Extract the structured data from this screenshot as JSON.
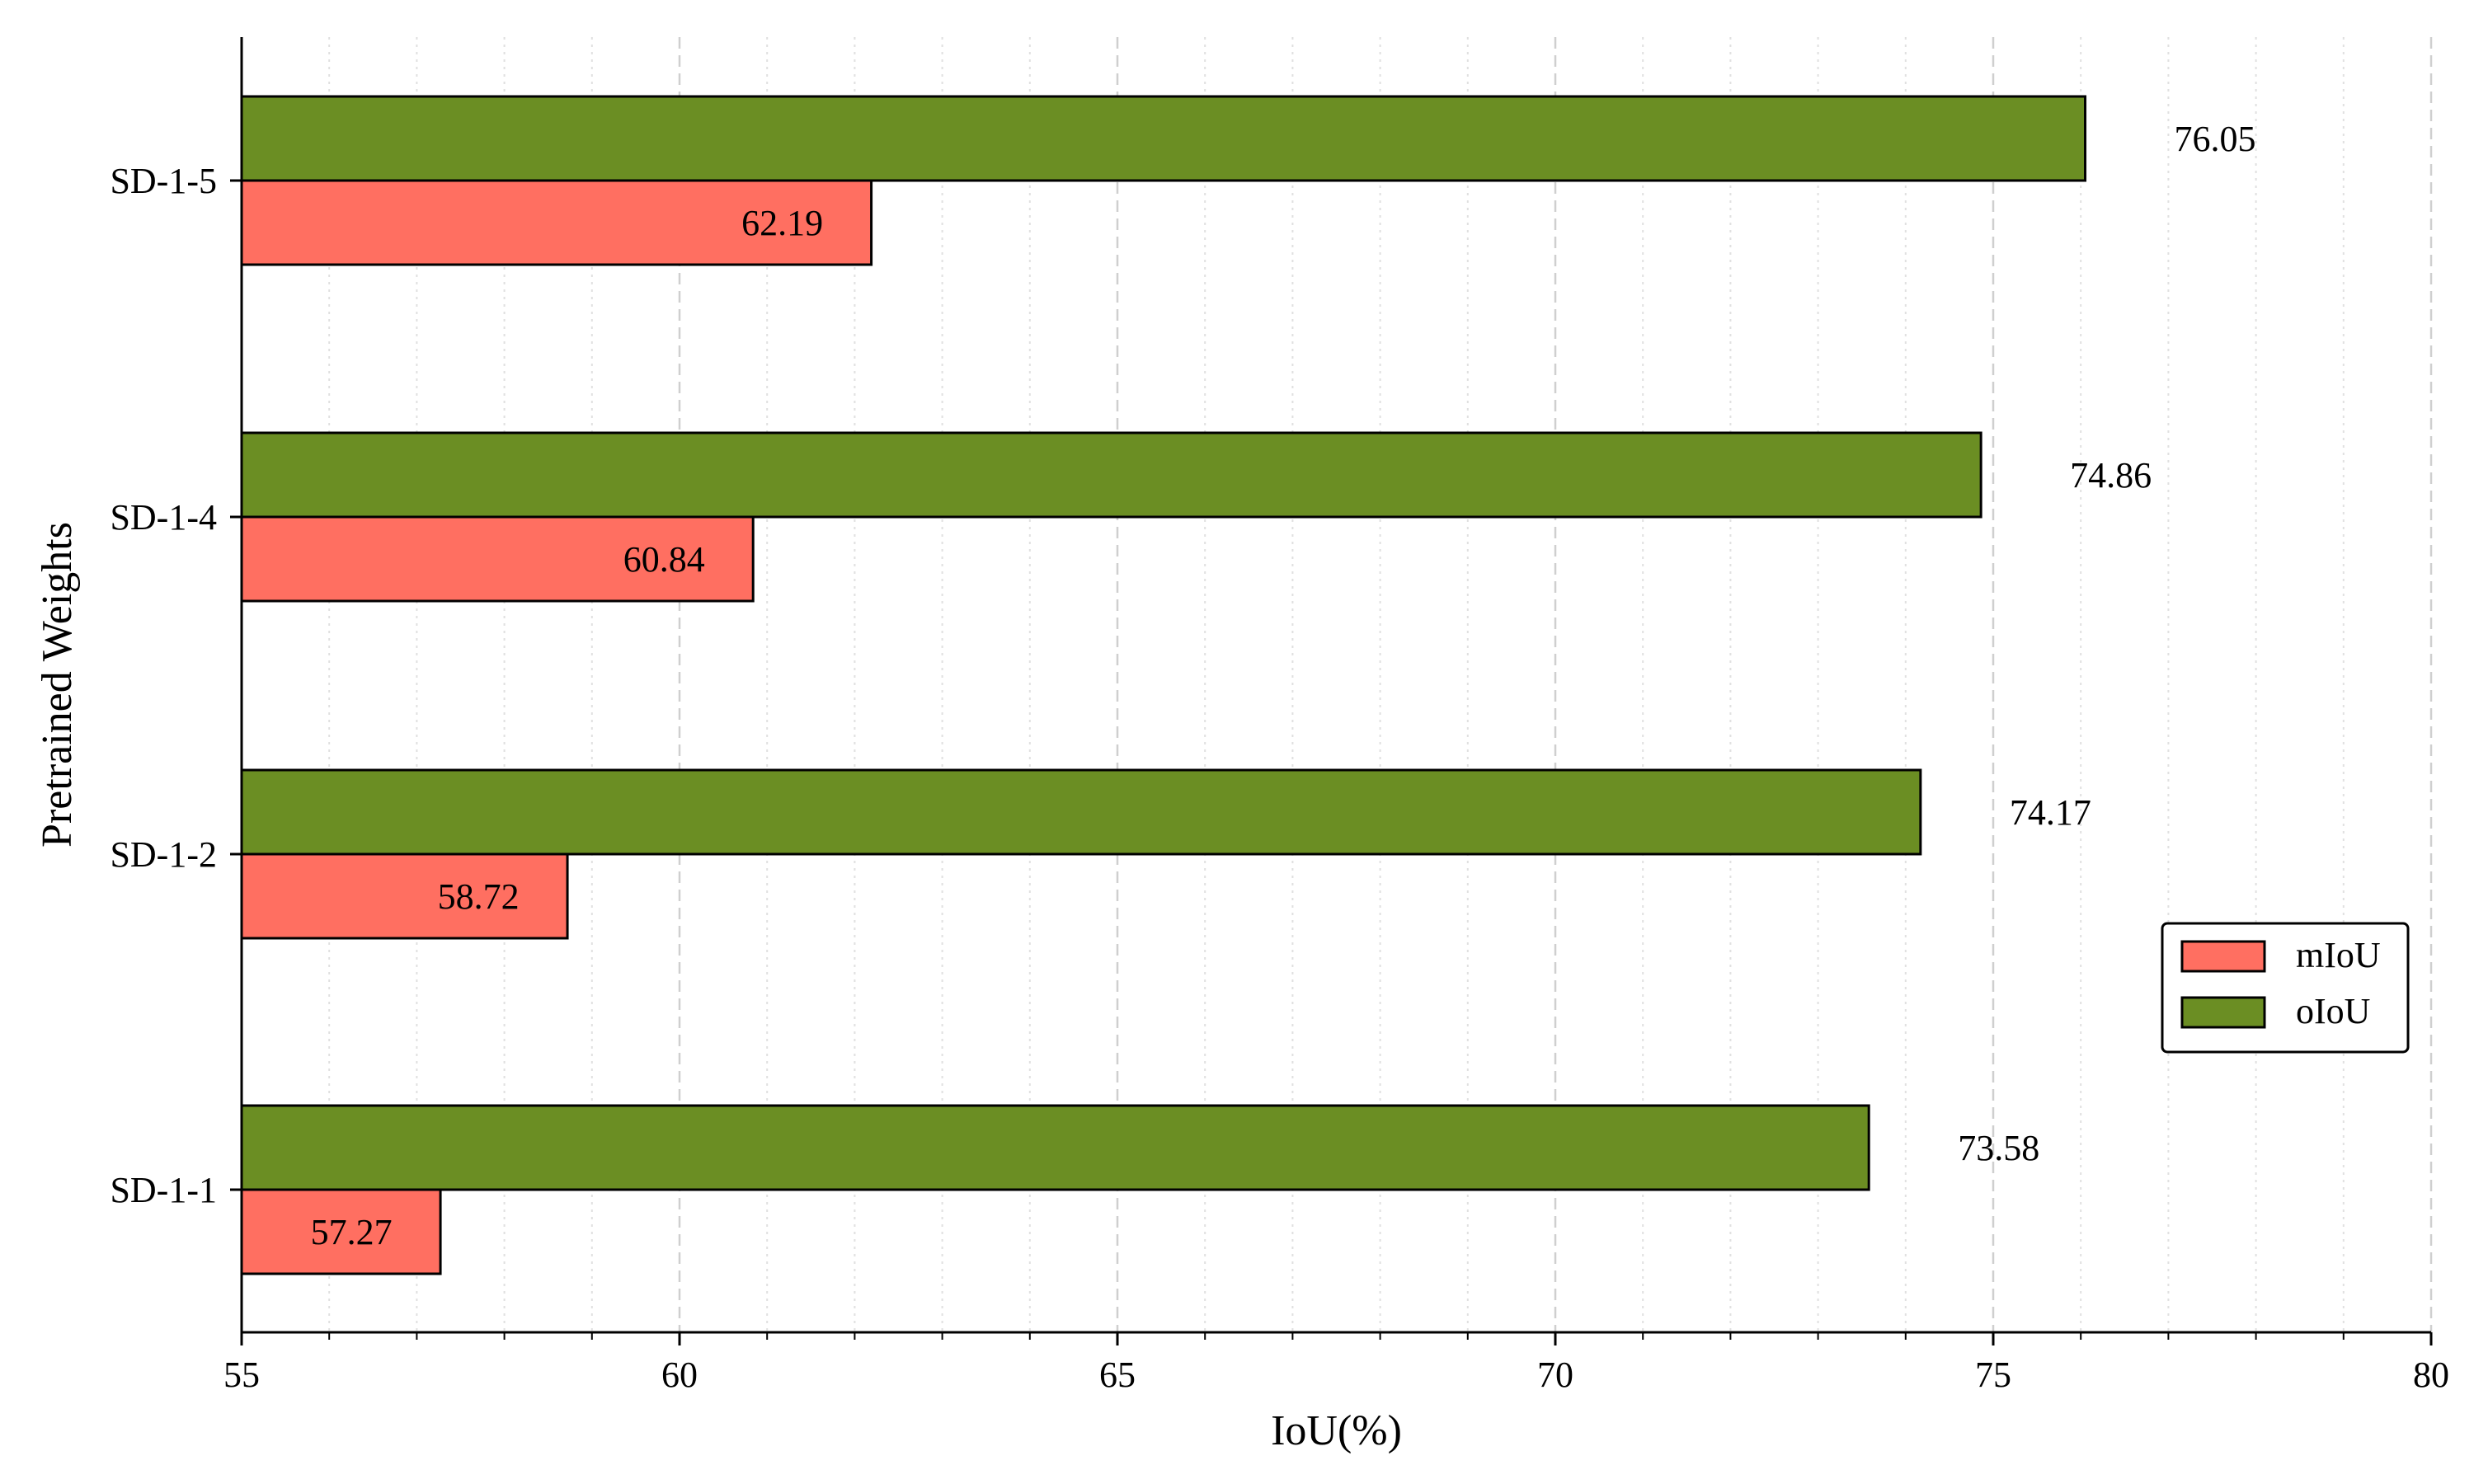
{
  "chart_data": {
    "type": "bar",
    "orientation": "horizontal",
    "categories": [
      "SD-1-1",
      "SD-1-2",
      "SD-1-4",
      "SD-1-5"
    ],
    "series": [
      {
        "name": "mIoU",
        "values": [
          57.27,
          58.72,
          60.84,
          62.19
        ],
        "labels": [
          "57.27",
          "58.72",
          "60.84",
          "62.19"
        ],
        "color": "#ff6f61"
      },
      {
        "name": "oIoU",
        "values": [
          73.58,
          74.17,
          74.86,
          76.05
        ],
        "labels": [
          "73.58",
          "74.17",
          "74.86",
          "76.05"
        ],
        "color": "#6b8e23"
      }
    ],
    "xlabel": "IoU(%)",
    "ylabel": "Pretrained Weights",
    "xlim": [
      55,
      80
    ],
    "xticks": [
      55,
      60,
      65,
      70,
      75,
      80
    ],
    "xtick_labels": [
      "55",
      "60",
      "65",
      "70",
      "75",
      "80"
    ],
    "grid": "vertical dashed",
    "legend_position": "center-right"
  }
}
